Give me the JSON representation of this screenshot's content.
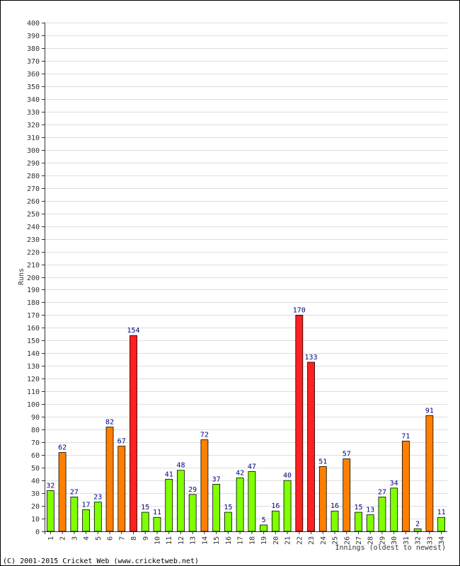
{
  "chart_data": {
    "type": "bar",
    "ylabel": "Runs",
    "xlabel": "Innings (oldest to newest)",
    "ylim": [
      0,
      400
    ],
    "ytick_step": 10,
    "grid": true,
    "legend": "none",
    "colors": {
      "lt50": "#80ff00",
      "fifty": "#ff8000",
      "hundred": "#ff2020",
      "value_label": "#000080"
    },
    "categories": [
      "1",
      "2",
      "3",
      "4",
      "5",
      "6",
      "7",
      "8",
      "9",
      "10",
      "11",
      "12",
      "13",
      "14",
      "15",
      "16",
      "17",
      "18",
      "19",
      "20",
      "21",
      "22",
      "23",
      "24",
      "25",
      "26",
      "27",
      "28",
      "29",
      "30",
      "31",
      "32",
      "33",
      "34"
    ],
    "values": [
      32,
      62,
      27,
      17,
      23,
      82,
      67,
      154,
      15,
      11,
      41,
      48,
      29,
      72,
      37,
      15,
      42,
      47,
      5,
      16,
      40,
      170,
      133,
      51,
      16,
      57,
      15,
      13,
      27,
      34,
      71,
      2,
      91,
      11
    ]
  },
  "footer": {
    "credit": "(C) 2001-2015 Cricket Web (www.cricketweb.net)"
  }
}
